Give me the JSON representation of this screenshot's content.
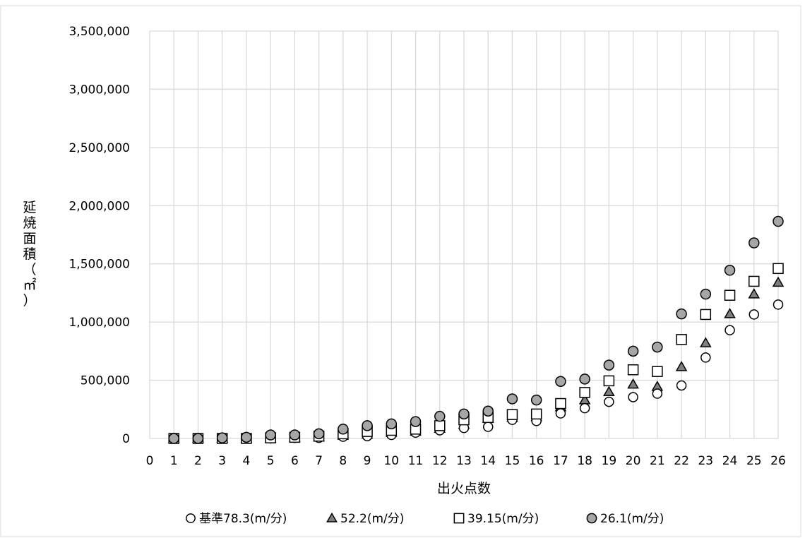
{
  "chart_data": {
    "type": "scatter",
    "title": "",
    "xlabel": "出火点数",
    "ylabel_chars": [
      "延",
      "焼",
      "面",
      "積",
      "（",
      "㎡",
      "）"
    ],
    "xlim": [
      0,
      26
    ],
    "ylim": [
      0,
      3500000
    ],
    "x_ticks": [
      "0",
      "1",
      "2",
      "3",
      "4",
      "5",
      "6",
      "7",
      "8",
      "9",
      "10",
      "11",
      "12",
      "13",
      "14",
      "15",
      "16",
      "17",
      "18",
      "19",
      "20",
      "21",
      "22",
      "23",
      "24",
      "25",
      "26"
    ],
    "y_ticks": [
      {
        "value": 0,
        "label": "0"
      },
      {
        "value": 500000,
        "label": "500,000"
      },
      {
        "value": 1000000,
        "label": "1,000,000"
      },
      {
        "value": 1500000,
        "label": "1,500,000"
      },
      {
        "value": 2000000,
        "label": "2,000,000"
      },
      {
        "value": 2500000,
        "label": "2,500,000"
      },
      {
        "value": 3000000,
        "label": "3,000,000"
      },
      {
        "value": 3500000,
        "label": "3,500,000"
      }
    ],
    "grid": true,
    "legend_position": "bottom",
    "x": [
      1,
      2,
      3,
      4,
      5,
      6,
      7,
      8,
      9,
      10,
      11,
      12,
      13,
      14,
      15,
      16,
      17,
      18,
      19,
      20,
      21,
      22,
      23,
      24,
      25,
      26
    ],
    "series": [
      {
        "name": "基準78.3(m/分)",
        "marker": "circle-open",
        "color": "#ffffff",
        "values": [
          0,
          0,
          0,
          0,
          0,
          5000,
          5000,
          15000,
          20000,
          30000,
          50000,
          70000,
          90000,
          100000,
          160000,
          150000,
          215000,
          260000,
          315000,
          355000,
          385000,
          455000,
          695000,
          930000,
          1065000,
          1150000
        ]
      },
      {
        "name": "52.2(m/分)",
        "marker": "triangle",
        "color": "#808080",
        "values": [
          0,
          0,
          0,
          0,
          0,
          5000,
          10000,
          25000,
          35000,
          50000,
          60000,
          85000,
          120000,
          170000,
          180000,
          185000,
          270000,
          330000,
          400000,
          465000,
          445000,
          615000,
          820000,
          1070000,
          1240000,
          1340000
        ]
      },
      {
        "name": "39.15(m/分)",
        "marker": "square-open",
        "color": "#ffffff",
        "values": [
          0,
          0,
          0,
          0,
          5000,
          10000,
          20000,
          40000,
          60000,
          70000,
          80000,
          110000,
          160000,
          180000,
          205000,
          210000,
          300000,
          395000,
          495000,
          590000,
          575000,
          850000,
          1065000,
          1230000,
          1350000,
          1460000
        ]
      },
      {
        "name": "26.1(m/分)",
        "marker": "circle",
        "color": "#a6a6a6",
        "values": [
          0,
          0,
          5000,
          10000,
          30000,
          30000,
          40000,
          80000,
          110000,
          125000,
          145000,
          190000,
          210000,
          235000,
          340000,
          330000,
          490000,
          510000,
          630000,
          750000,
          785000,
          1070000,
          1240000,
          1445000,
          1680000,
          1865000
        ]
      }
    ]
  }
}
